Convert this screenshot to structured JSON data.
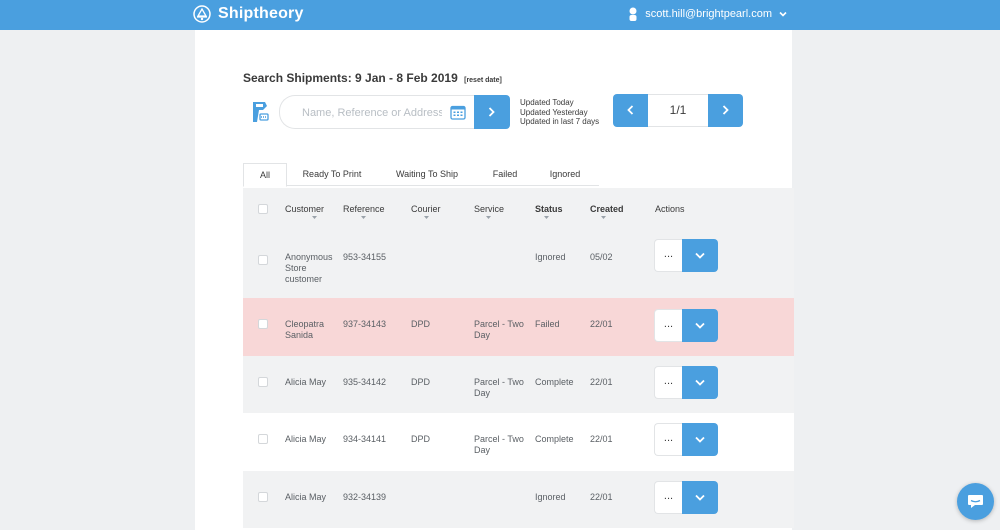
{
  "colors": {
    "accent": "#4a9fdf",
    "failed_row": "#f8d7d7",
    "alt_row": "#f1f2f3"
  },
  "topbar": {
    "brand": "Shiptheory",
    "user_email": "scott.hill@brightpearl.com"
  },
  "search": {
    "title": "Search Shipments: 9 Jan - 8 Feb 2019",
    "reset_label": "[reset date]",
    "placeholder": "Name, Reference or Address",
    "updated_options": [
      "Updated Today",
      "Updated Yesterday",
      "Updated in last 7 days"
    ]
  },
  "pager": {
    "count": "1/1"
  },
  "tabs": [
    "All",
    "Ready To Print",
    "Waiting To Ship",
    "Failed",
    "Ignored"
  ],
  "table": {
    "headers": [
      "Customer",
      "Reference",
      "Courier",
      "Service",
      "Status",
      "Created",
      "Actions"
    ],
    "more_label": "...",
    "rows": [
      {
        "customer": "Anonymous Store customer",
        "reference": "953-34155",
        "courier": "",
        "service": "",
        "status": "Ignored",
        "created": "05/02"
      },
      {
        "customer": "Cleopatra Sanida",
        "reference": "937-34143",
        "courier": "DPD",
        "service": "Parcel - Two Day",
        "status": "Failed",
        "created": "22/01"
      },
      {
        "customer": "Alicia May",
        "reference": "935-34142",
        "courier": "DPD",
        "service": "Parcel - Two Day",
        "status": "Complete",
        "created": "22/01"
      },
      {
        "customer": "Alicia May",
        "reference": "934-34141",
        "courier": "DPD",
        "service": "Parcel - Two Day",
        "status": "Complete",
        "created": "22/01"
      },
      {
        "customer": "Alicia May",
        "reference": "932-34139",
        "courier": "",
        "service": "",
        "status": "Ignored",
        "created": "22/01"
      }
    ]
  },
  "icons": [
    "shiptheory-logo-icon",
    "user-icon",
    "chevron-down-icon",
    "scanner-icon",
    "calendar-icon",
    "chevron-right-icon",
    "chevron-left-icon",
    "chat-icon"
  ]
}
